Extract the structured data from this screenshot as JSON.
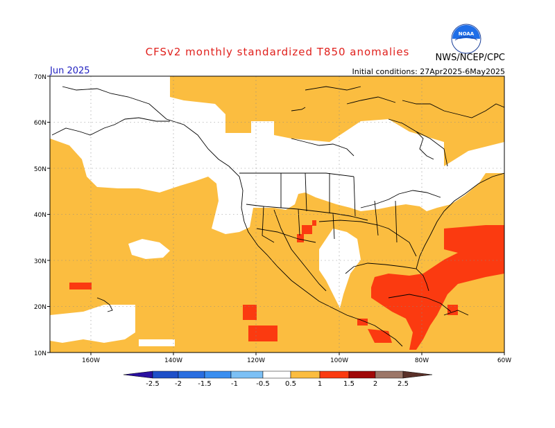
{
  "title": "CFSv2 monthly standardized T850 anomalies",
  "agency": "NWS/NCEP/CPC",
  "logo_text": "NOAA",
  "month": "Jun 2025",
  "initial_conditions": "Initial conditions: 27Apr2025-6May2025",
  "lat_labels": [
    "70N",
    "60N",
    "50N",
    "40N",
    "30N",
    "20N",
    "10N"
  ],
  "lon_labels": [
    "160W",
    "140W",
    "120W",
    "100W",
    "80W",
    "60W"
  ],
  "colorbar": {
    "labels": [
      "-2.5",
      "-2",
      "-1.5",
      "-1",
      "-0.5",
      "0.5",
      "1",
      "1.5",
      "2",
      "2.5"
    ],
    "colors": [
      "#2a10a0",
      "#1e4fc8",
      "#3a8ef0",
      "#7cc0f5",
      "#ffffff",
      "#fbbd40",
      "#fb3a10",
      "#a00808",
      "#9c7668",
      "#5a3028"
    ]
  },
  "map_colors": {
    "positive_05_1": "#fbbd40",
    "positive_1_15": "#fb3a10",
    "neutral": "#ffffff"
  }
}
